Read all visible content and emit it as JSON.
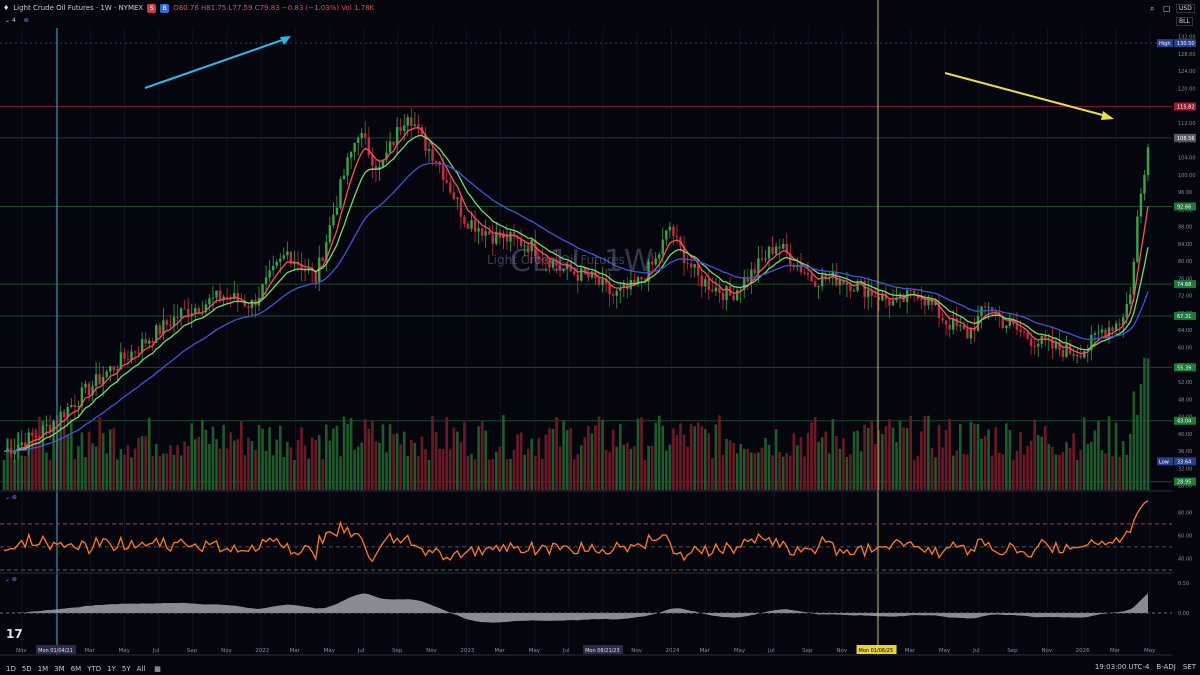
{
  "header": {
    "symbol_name": "Light Crude Oil Futures · 1W · NYMEX",
    "sell_label": "S",
    "buy_label": "B",
    "ohlc": "O80.76 H81.75 L77.59 C79.83 −0.83 (−1.03%) Vol 1.78K",
    "indicator_count": "4",
    "currency": "USD",
    "unit": "BLL"
  },
  "watermark": {
    "ticker": "CL1!, 1W",
    "name": "Light Crude Oil Futures"
  },
  "colors": {
    "background": "#05050e",
    "up": "#39a34a",
    "down": "#c0303c",
    "ema_fast": "#ff4d5a",
    "ema_mid": "#6ede6e",
    "ema_slow": "#3f55d6",
    "rsi": "#ff7a22",
    "hist": "#b7b7c0",
    "arrow_cyan": "#2fb7e8",
    "arrow_yellow": "#e8dc4a",
    "vline_cyan": "#3aa7c8",
    "vline_yellow": "#c8c25a",
    "level_red": "#a01e35",
    "level_green": "#1e7a3a"
  },
  "chart_data": {
    "type": "candlestick",
    "price_axis": {
      "ticks": [
        28.0,
        32.0,
        36.0,
        40.0,
        44.0,
        48.0,
        52.0,
        56.0,
        60.0,
        64.0,
        68.0,
        72.0,
        76.0,
        80.0,
        84.0,
        88.0,
        92.0,
        96.0,
        100.0,
        104.0,
        108.0,
        112.0,
        116.0,
        120.0,
        124.0,
        128.0,
        132.0
      ],
      "range": [
        27,
        134
      ]
    },
    "price_labels": [
      {
        "text": "High",
        "value": "130.50",
        "price": 130.5,
        "color": "#2a3f8a"
      },
      {
        "text": "",
        "value": "115.82",
        "price": 115.82,
        "color": "#a01e35"
      },
      {
        "text": "",
        "value": "108.56",
        "price": 108.56,
        "color": "#5a5a6a"
      },
      {
        "text": "",
        "value": "92.66",
        "price": 92.66,
        "color": "#1e7a3a"
      },
      {
        "text": "",
        "value": "74.68",
        "price": 74.68,
        "color": "#1e7a3a"
      },
      {
        "text": "",
        "value": "67.31",
        "price": 67.31,
        "color": "#1e7a3a"
      },
      {
        "text": "",
        "value": "55.39",
        "price": 55.39,
        "color": "#1e7a3a"
      },
      {
        "text": "",
        "value": "43.04",
        "price": 43.04,
        "color": "#1e7a3a"
      },
      {
        "text": "Low",
        "value": "33.64",
        "price": 33.64,
        "color": "#2a3f8a"
      },
      {
        "text": "",
        "value": "28.95",
        "price": 28.95,
        "color": "#1e7a3a"
      }
    ],
    "x_axis_labels": [
      "Nov",
      "Mon 01/04/21",
      "Mar",
      "May",
      "Jul",
      "Sep",
      "Nov",
      "2022",
      "Mar",
      "May",
      "Jul",
      "Sep",
      "Nov",
      "2023",
      "Mar",
      "May",
      "Jul",
      "Mon 08/21/23",
      "Nov",
      "2024",
      "Mar",
      "May",
      "Jul",
      "Sep",
      "Nov",
      "Mon 01/06/25",
      "Mar",
      "May",
      "Jul",
      "Sep",
      "Nov",
      "2026",
      "Mar",
      "May"
    ],
    "rsi": {
      "ticks": [
        40.0,
        60.0,
        80.0
      ],
      "overbought": 70,
      "oversold": 30
    },
    "hist": {
      "ticks": [
        0.5,
        0.0
      ]
    }
  },
  "footer": {
    "timeframes": [
      "1D",
      "5D",
      "1M",
      "3M",
      "6M",
      "YTD",
      "1Y",
      "5Y",
      "All"
    ],
    "time": "19:03:00 UTC-4",
    "badj": "B-ADJ",
    "session": "SET"
  }
}
